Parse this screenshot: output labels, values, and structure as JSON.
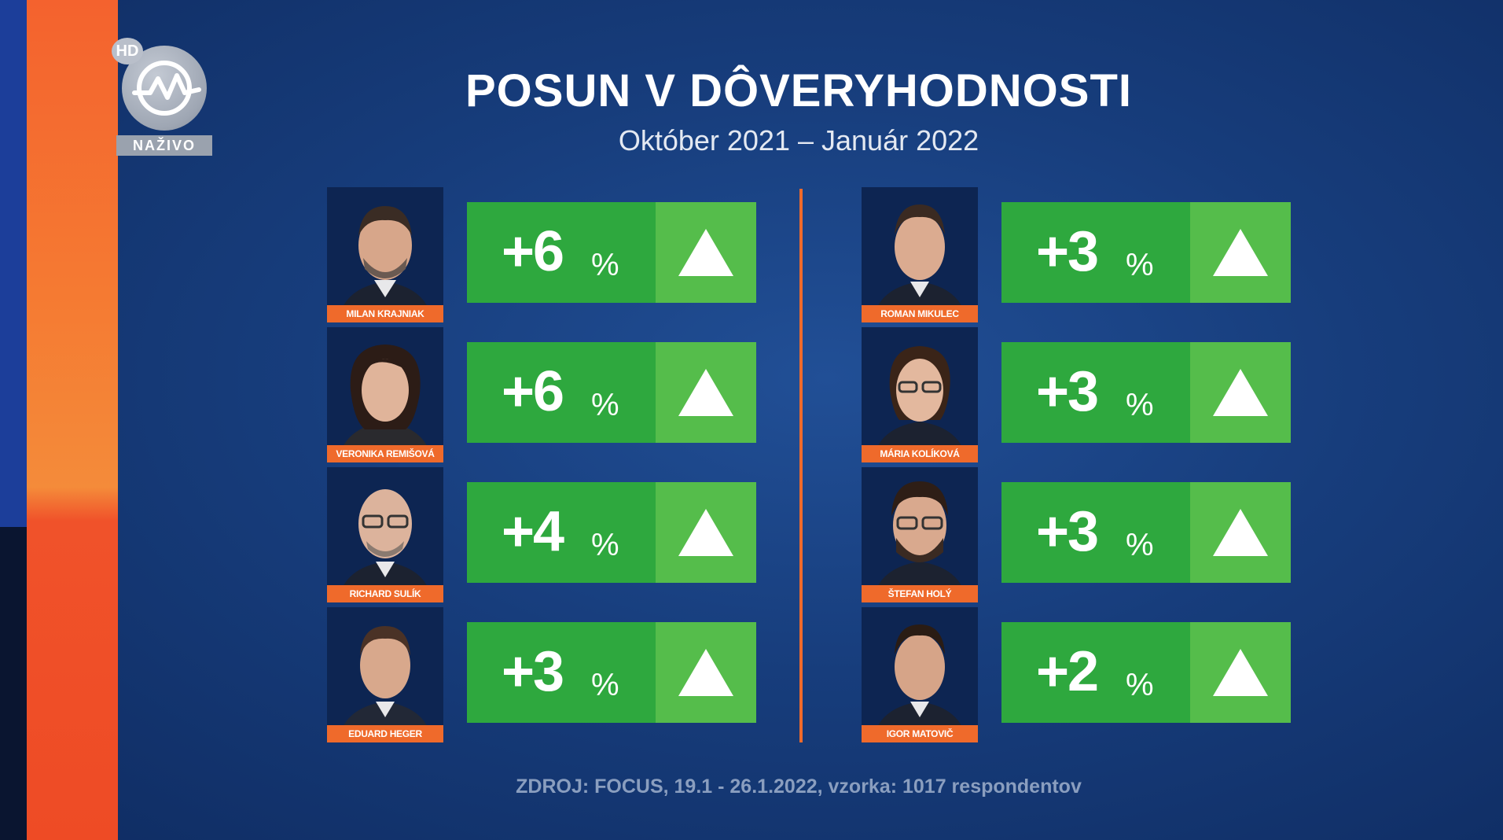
{
  "channel": {
    "hd_badge": "HD",
    "live_label": "NAŽIVO"
  },
  "header": {
    "title": "POSUN V DÔVERYHODNOSTI",
    "subtitle": "Október 2021 – Január 2022"
  },
  "left_column": [
    {
      "name": "MILAN KRAJNIAK",
      "value": "+6",
      "unit": "%"
    },
    {
      "name": "VERONIKA REMIŠOVÁ",
      "value": "+6",
      "unit": "%"
    },
    {
      "name": "RICHARD SULÍK",
      "value": "+4",
      "unit": "%"
    },
    {
      "name": "EDUARD HEGER",
      "value": "+3",
      "unit": "%"
    }
  ],
  "right_column": [
    {
      "name": "ROMAN MIKULEC",
      "value": "+3",
      "unit": "%"
    },
    {
      "name": "MÁRIA KOLÍKOVÁ",
      "value": "+3",
      "unit": "%"
    },
    {
      "name": "ŠTEFAN HOLÝ",
      "value": "+3",
      "unit": "%"
    },
    {
      "name": "IGOR MATOVIČ",
      "value": "+2",
      "unit": "%"
    }
  ],
  "source": "ZDROJ: FOCUS, 19.1 - 26.1.2022, vzorka: 1017 respondentov",
  "colors": {
    "value_green": "#2ea83e",
    "arrow_green": "#55bd4b",
    "accent_orange": "#ef6a2b"
  }
}
